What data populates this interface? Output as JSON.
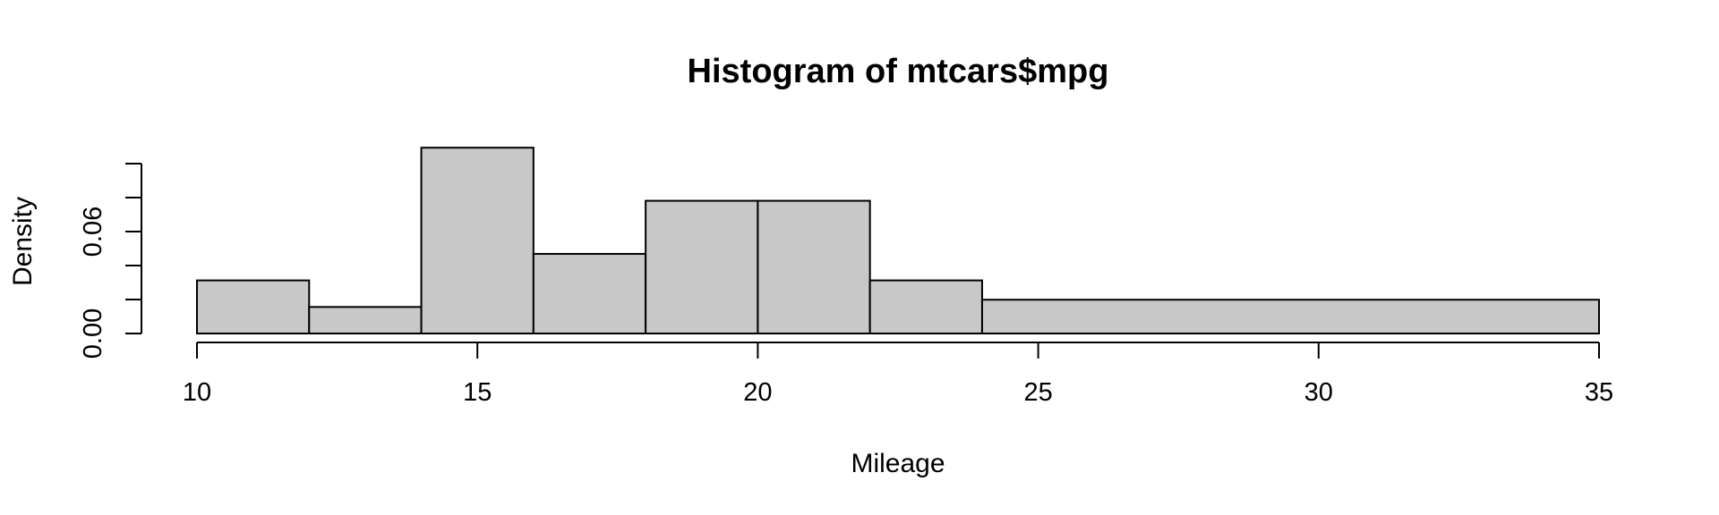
{
  "chart_data": {
    "type": "bar",
    "title": "Histogram of mtcars$mpg",
    "xlabel": "Mileage",
    "ylabel": "Density",
    "xlim": [
      10,
      35
    ],
    "ylim": [
      0,
      0.1
    ],
    "x_ticks": [
      10,
      15,
      20,
      25,
      30,
      35
    ],
    "y_ticks": [
      0.0,
      0.02,
      0.04,
      0.06,
      0.08,
      0.1
    ],
    "y_tick_labels": [
      "0.00",
      "",
      "",
      "0.06",
      "",
      ""
    ],
    "bins": [
      {
        "start": 10,
        "end": 12,
        "density": 0.03125
      },
      {
        "start": 12,
        "end": 14,
        "density": 0.015625
      },
      {
        "start": 14,
        "end": 16,
        "density": 0.109375
      },
      {
        "start": 16,
        "end": 18,
        "density": 0.046875
      },
      {
        "start": 18,
        "end": 20,
        "density": 0.078125
      },
      {
        "start": 20,
        "end": 22,
        "density": 0.078125
      },
      {
        "start": 22,
        "end": 24,
        "density": 0.03125
      },
      {
        "start": 24,
        "end": 35,
        "density": 0.0198864
      }
    ],
    "colors": {
      "bar_fill": "#c8c8c8",
      "bar_stroke": "#000000"
    },
    "grid": false
  }
}
